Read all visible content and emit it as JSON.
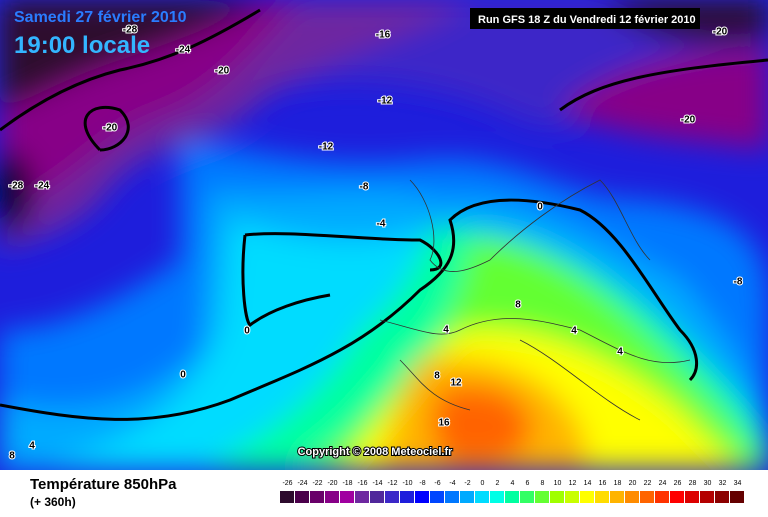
{
  "header": {
    "date": "Samedi 27 février 2010",
    "time": "19:00 locale",
    "run": "Run GFS 18 Z du Vendredi 12 février 2010"
  },
  "map": {
    "contour_labels": [
      -28,
      -24,
      -20,
      -16,
      -12,
      -12,
      -20,
      -28,
      -24,
      -8,
      -4,
      0,
      0,
      0,
      -20,
      -20,
      -8,
      8,
      4,
      4,
      4,
      8,
      12,
      16,
      4,
      8
    ],
    "copyright": "Copyright © 2008 Meteociel.fr"
  },
  "legend": {
    "title": "Température 850hPa",
    "subtitle": "(+ 360h)",
    "scale": [
      -26,
      -24,
      -22,
      -20,
      -18,
      -16,
      -14,
      -12,
      -10,
      -8,
      -6,
      -4,
      -2,
      0,
      2,
      4,
      6,
      8,
      10,
      12,
      14,
      16,
      18,
      20,
      22,
      24,
      26,
      28,
      30,
      32,
      34
    ],
    "colors": [
      "#2d0a2d",
      "#4b004b",
      "#690069",
      "#870087",
      "#a000a0",
      "#6e28a0",
      "#50289b",
      "#3c28c8",
      "#1e1edc",
      "#0000ff",
      "#0046ff",
      "#0078ff",
      "#00aaff",
      "#00dcff",
      "#00ffe6",
      "#00ffa0",
      "#32ff64",
      "#64ff32",
      "#a0ff00",
      "#c8ff00",
      "#ffff00",
      "#ffdc00",
      "#ffb400",
      "#ff8c00",
      "#ff6400",
      "#ff3200",
      "#ff0000",
      "#dc0000",
      "#b40000",
      "#8c0000",
      "#640000"
    ]
  }
}
